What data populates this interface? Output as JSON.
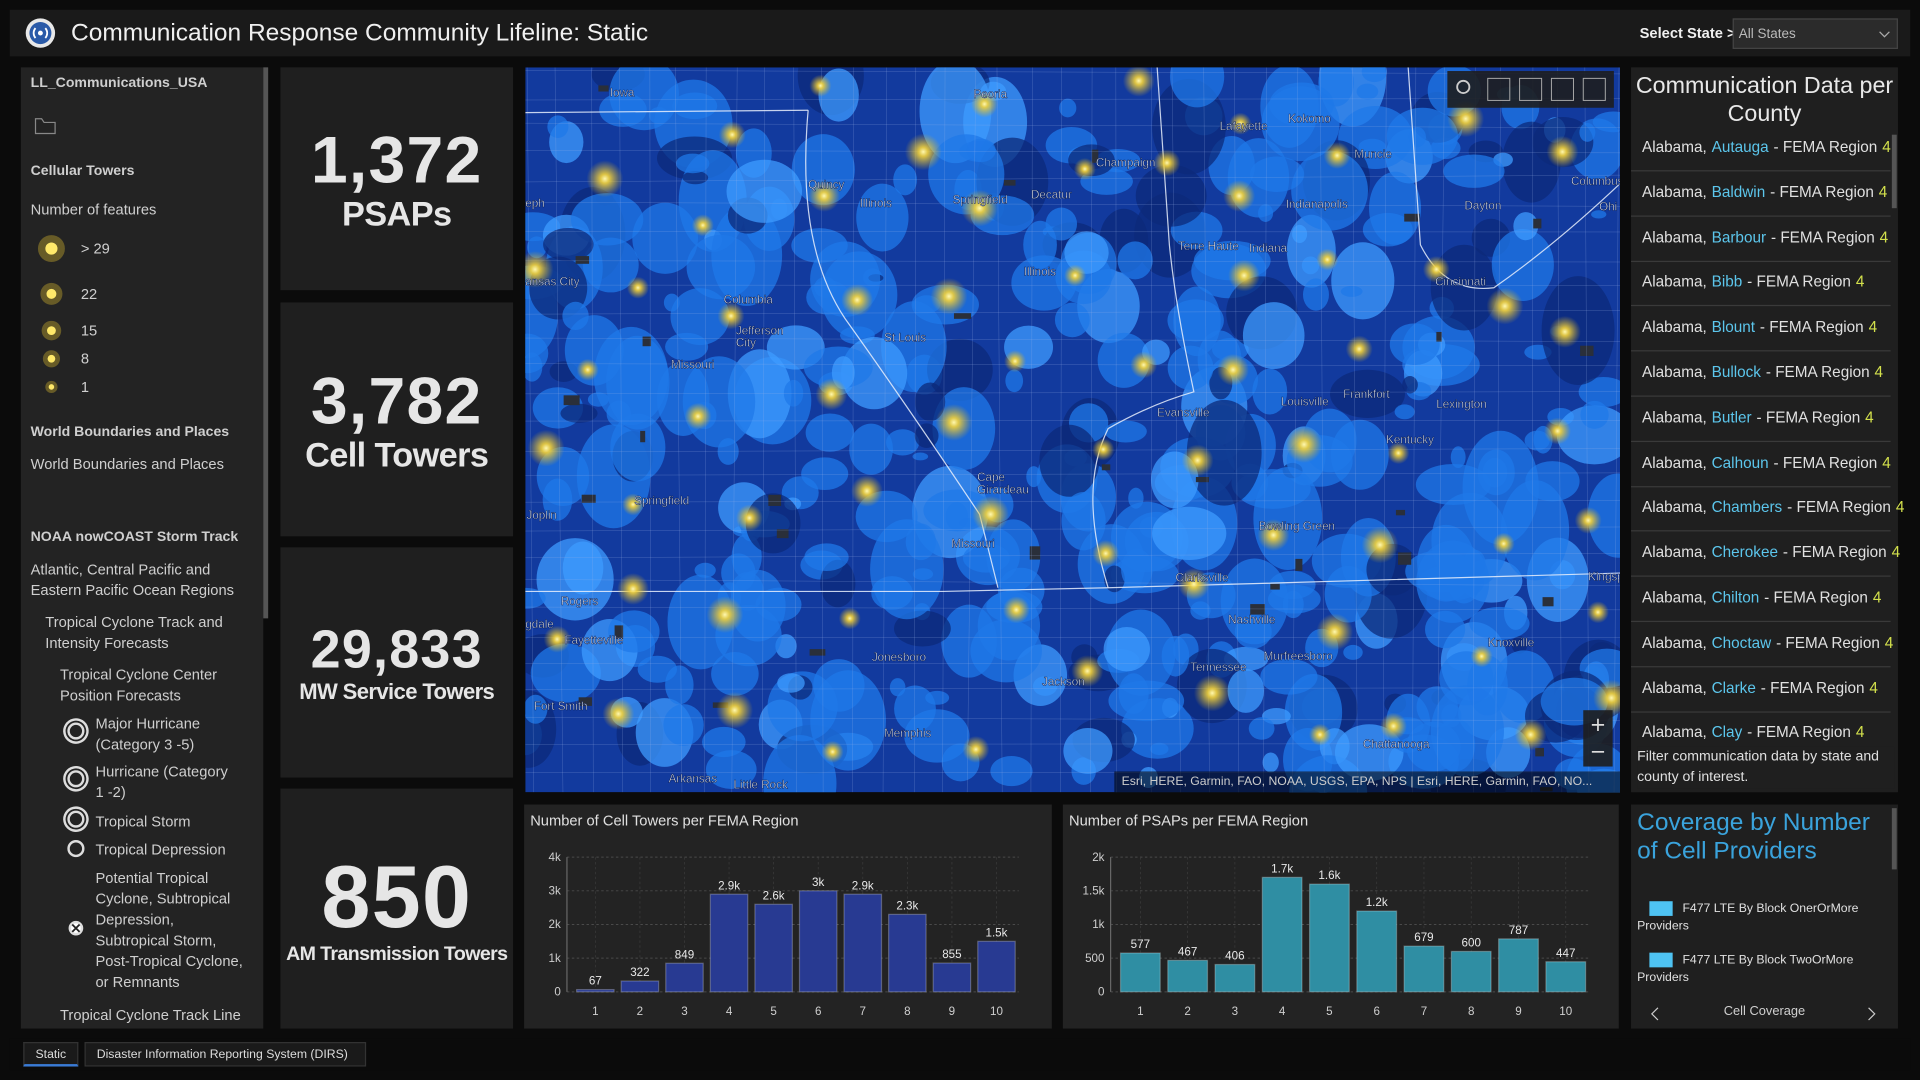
{
  "header": {
    "title": "Communication Response Community Lifeline: Static",
    "select_label": "Select State >",
    "select_value": "All States"
  },
  "sidebar": {
    "items": [
      "LL_Communications_USA",
      "Cellular Towers",
      "Number of features",
      "World Boundaries and Places",
      "World Boundaries and Places",
      "NOAA nowCOAST Storm Track",
      "Atlantic, Central Pacific and Eastern Pacific Ocean Regions",
      "Tropical Cyclone Track and Intensity Forecasts",
      "Tropical Cyclone Center Position Forecasts",
      "Major Hurricane (Category 3 -5)",
      "Hurricane (Category 1 -2)",
      "Tropical Storm",
      "Tropical Depression",
      "Potential Tropical Cyclone, Subtropical Depression, Subtropical Storm, Post-Tropical Cyclone, or Remnants",
      "Tropical Cyclone Track Line"
    ],
    "size_legend": [
      "> 29",
      "22",
      "15",
      "8",
      "1"
    ]
  },
  "indicators": [
    {
      "value": "1,372",
      "label": "PSAPs"
    },
    {
      "value": "3,782",
      "label": "Cell Towers"
    },
    {
      "value": "29,833",
      "label": "MW Service Towers"
    },
    {
      "value": "850",
      "label": "AM Transmission Towers"
    }
  ],
  "map": {
    "labels": [
      "Iowa",
      "Peoria",
      "Lafayette",
      "Kokomo",
      "Muncie",
      "Columbus",
      "Ohi",
      "Champaign",
      "Quincy",
      "Illinois",
      "Springfield",
      "Decatur",
      "Indianapolis",
      "Dayton",
      "eph",
      "ansas City",
      "Terre Haute",
      "Indiana",
      "Illinois",
      "Cincinnati",
      "Columbia",
      "Jefferson",
      "City",
      "St Louis",
      "Missouri",
      "Frankfort",
      "Louisville",
      "Lexington",
      "Evansville",
      "Kentucky",
      "Springfield",
      "Cape",
      "Girardeau",
      "Missouri",
      "Joplin",
      "Bowling Green",
      "Clarksville",
      "Kingsp",
      "Rogers",
      "gdale",
      "Fayetteville",
      "Nashville",
      "Knoxville",
      "Jonesboro",
      "Murfreesboro",
      "Tennessee",
      "Jackson",
      "Fort Smith",
      "Memphis",
      "Chattanooga",
      "Arkansas",
      "Little Rock"
    ],
    "attribution": "Esri, HERE, Garmin, FAO, NOAA, USGS, EPA, NPS | Esri, HERE, Garmin, FAO, NO..."
  },
  "county_list": {
    "title": "Communication Data per County",
    "items": [
      {
        "state": "Alabama,",
        "county": "Autauga",
        "region_label": "- FEMA Region",
        "region": "4"
      },
      {
        "state": "Alabama,",
        "county": "Baldwin",
        "region_label": "- FEMA Region",
        "region": "4"
      },
      {
        "state": "Alabama,",
        "county": "Barbour",
        "region_label": "- FEMA Region",
        "region": "4"
      },
      {
        "state": "Alabama,",
        "county": "Bibb",
        "region_label": "- FEMA Region",
        "region": "4"
      },
      {
        "state": "Alabama,",
        "county": "Blount",
        "region_label": "- FEMA Region",
        "region": "4"
      },
      {
        "state": "Alabama,",
        "county": "Bullock",
        "region_label": "- FEMA Region",
        "region": "4"
      },
      {
        "state": "Alabama,",
        "county": "Butler",
        "region_label": "- FEMA Region",
        "region": "4"
      },
      {
        "state": "Alabama,",
        "county": "Calhoun",
        "region_label": "- FEMA Region",
        "region": "4"
      },
      {
        "state": "Alabama,",
        "county": "Chambers",
        "region_label": "- FEMA Region",
        "region": "4"
      },
      {
        "state": "Alabama,",
        "county": "Cherokee",
        "region_label": "- FEMA Region",
        "region": "4"
      },
      {
        "state": "Alabama,",
        "county": "Chilton",
        "region_label": "- FEMA Region",
        "region": "4"
      },
      {
        "state": "Alabama,",
        "county": "Choctaw",
        "region_label": "- FEMA Region",
        "region": "4"
      },
      {
        "state": "Alabama,",
        "county": "Clarke",
        "region_label": "- FEMA Region",
        "region": "4"
      },
      {
        "state": "Alabama,",
        "county": "Clay",
        "region_label": "- FEMA Region",
        "region": "4"
      }
    ],
    "note": "Filter communication data by state and county of interest."
  },
  "coverage": {
    "title": "Coverage by Number of Cell Providers",
    "legend": [
      "F477 LTE By Block OnerOrMore Providers",
      "F477 LTE By Block TwoOrMore Providers"
    ],
    "nav_label": "Cell Coverage"
  },
  "tabs": [
    "Static",
    "Disaster Information Reporting System (DIRS)"
  ],
  "chart_data": [
    {
      "type": "bar",
      "title": "Number of Cell Towers per FEMA Region",
      "categories": [
        "1",
        "2",
        "3",
        "4",
        "5",
        "6",
        "7",
        "8",
        "9",
        "10"
      ],
      "values": [
        67,
        322,
        849,
        2900,
        2600,
        3000,
        2900,
        2300,
        855,
        1500
      ],
      "value_labels": [
        "67",
        "322",
        "849",
        "2.9k",
        "2.6k",
        "3k",
        "2.9k",
        "2.3k",
        "855",
        "1.5k"
      ],
      "color": "#283a92",
      "ylim": [
        0,
        4000
      ],
      "yticks": [
        0,
        {
          "value": 1000,
          "label": "1k"
        },
        {
          "value": 2000,
          "label": "2k"
        },
        {
          "value": 3000,
          "label": "3k"
        },
        {
          "value": 4000,
          "label": "4k"
        }
      ],
      "grid": true
    },
    {
      "type": "bar",
      "title": "Number of PSAPs per FEMA Region",
      "categories": [
        "1",
        "2",
        "3",
        "4",
        "5",
        "6",
        "7",
        "8",
        "9",
        "10"
      ],
      "values": [
        577,
        467,
        406,
        1700,
        1600,
        1200,
        679,
        600,
        787,
        447
      ],
      "value_labels": [
        "577",
        "467",
        "406",
        "1.7k",
        "1.6k",
        "1.2k",
        "679",
        "600",
        "787",
        "447"
      ],
      "color": "#2f8ea3",
      "ylim": [
        0,
        2000
      ],
      "yticks": [
        0,
        500,
        {
          "value": 1000,
          "label": "1k"
        },
        {
          "value": 1500,
          "label": "1.5k"
        },
        {
          "value": 2000,
          "label": "2k"
        }
      ],
      "grid": true
    }
  ]
}
